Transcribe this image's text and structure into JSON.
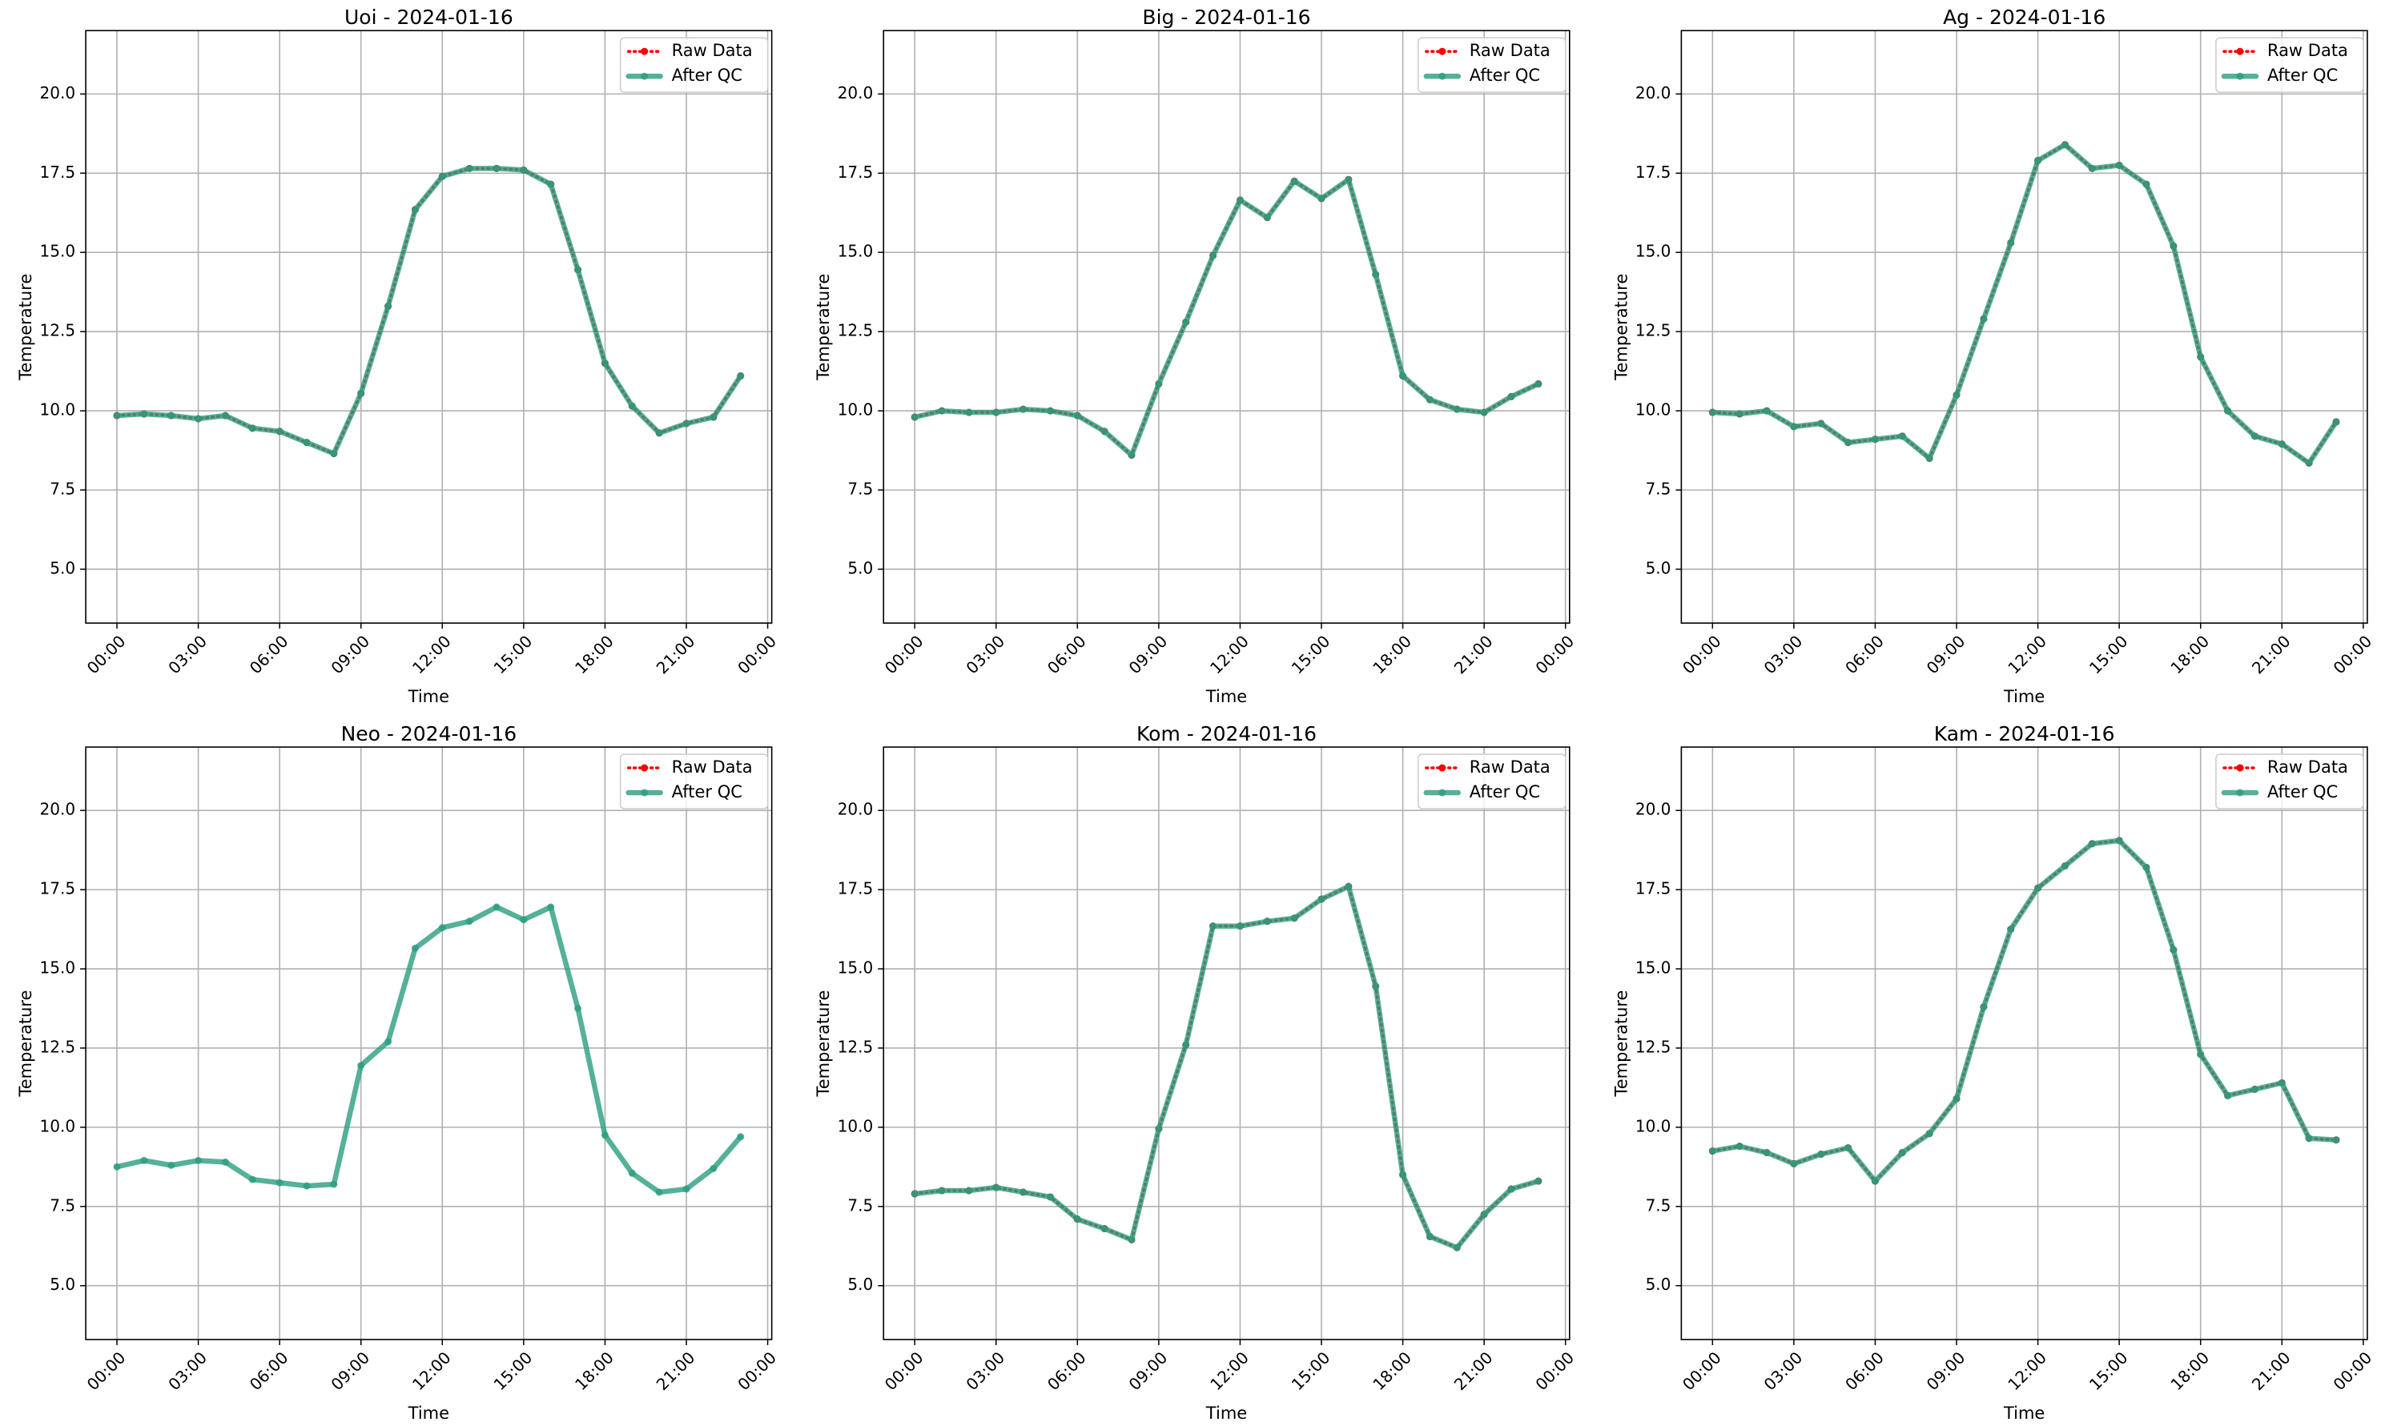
{
  "chart_data": [
    {
      "type": "line",
      "title": "Uoi - 2024-01-16",
      "xlabel": "Time",
      "ylabel": "Temperature",
      "x": [
        0,
        1,
        2,
        3,
        4,
        5,
        6,
        7,
        8,
        9,
        10,
        11,
        12,
        13,
        14,
        15,
        16,
        17,
        18,
        19,
        20,
        21,
        22,
        23
      ],
      "xlim": [
        -1.15,
        24.15
      ],
      "xticks": [
        {
          "value": 0,
          "label": "00:00"
        },
        {
          "value": 3,
          "label": "03:00"
        },
        {
          "value": 6,
          "label": "06:00"
        },
        {
          "value": 9,
          "label": "09:00"
        },
        {
          "value": 12,
          "label": "12:00"
        },
        {
          "value": 15,
          "label": "15:00"
        },
        {
          "value": 18,
          "label": "18:00"
        },
        {
          "value": 21,
          "label": "21:00"
        },
        {
          "value": 24,
          "label": "00:00"
        }
      ],
      "ylim": [
        3.3,
        22.0
      ],
      "yticks": [
        {
          "value": 5,
          "label": "5.0"
        },
        7.5,
        {
          "value": 10,
          "label": "10.0"
        },
        12.5,
        {
          "value": 15,
          "label": "15.0"
        },
        17.5,
        {
          "value": 20,
          "label": "20.0"
        }
      ],
      "grid": true,
      "legend": "upper right",
      "series": [
        {
          "name": "Raw Data",
          "color": "red",
          "values": [
            9.85,
            9.9,
            9.85,
            9.75,
            9.85,
            9.45,
            9.35,
            9.0,
            8.65,
            10.55,
            13.3,
            16.35,
            17.4,
            17.65,
            17.65,
            17.6,
            17.15,
            14.45,
            11.5,
            10.15,
            9.3,
            9.6,
            9.8,
            11.1
          ]
        },
        {
          "name": "After QC",
          "color": "#2a9d7f",
          "values": [
            9.85,
            9.9,
            9.85,
            9.75,
            9.85,
            9.45,
            9.35,
            9.0,
            8.65,
            10.55,
            13.3,
            16.35,
            17.4,
            17.65,
            17.65,
            17.6,
            17.15,
            14.45,
            11.5,
            10.15,
            9.3,
            9.6,
            9.8,
            11.1
          ]
        }
      ]
    },
    {
      "type": "line",
      "title": "Big - 2024-01-16",
      "xlabel": "Time",
      "ylabel": "Temperature",
      "x": [
        0,
        1,
        2,
        3,
        4,
        5,
        6,
        7,
        8,
        9,
        10,
        11,
        12,
        13,
        14,
        15,
        16,
        17,
        18,
        19,
        20,
        21,
        22,
        23
      ],
      "xlim": [
        -1.15,
        24.15
      ],
      "xticks": [
        {
          "value": 0,
          "label": "00:00"
        },
        {
          "value": 3,
          "label": "03:00"
        },
        {
          "value": 6,
          "label": "06:00"
        },
        {
          "value": 9,
          "label": "09:00"
        },
        {
          "value": 12,
          "label": "12:00"
        },
        {
          "value": 15,
          "label": "15:00"
        },
        {
          "value": 18,
          "label": "18:00"
        },
        {
          "value": 21,
          "label": "21:00"
        },
        {
          "value": 24,
          "label": "00:00"
        }
      ],
      "ylim": [
        3.3,
        22.0
      ],
      "yticks": [
        {
          "value": 5,
          "label": "5.0"
        },
        7.5,
        {
          "value": 10,
          "label": "10.0"
        },
        12.5,
        {
          "value": 15,
          "label": "15.0"
        },
        17.5,
        {
          "value": 20,
          "label": "20.0"
        }
      ],
      "grid": true,
      "legend": "upper right",
      "series": [
        {
          "name": "Raw Data",
          "color": "red",
          "values": [
            9.8,
            10.0,
            9.95,
            9.95,
            10.05,
            10.0,
            9.85,
            9.35,
            8.6,
            10.85,
            12.8,
            14.9,
            16.65,
            16.1,
            17.25,
            16.7,
            17.3,
            14.3,
            11.1,
            10.35,
            10.05,
            9.95,
            10.45,
            10.85
          ]
        },
        {
          "name": "After QC",
          "color": "#2a9d7f",
          "values": [
            9.8,
            10.0,
            9.95,
            9.95,
            10.05,
            10.0,
            9.85,
            9.35,
            8.6,
            10.85,
            12.8,
            14.9,
            16.65,
            16.1,
            17.25,
            16.7,
            17.3,
            14.3,
            11.1,
            10.35,
            10.05,
            9.95,
            10.45,
            10.85
          ]
        }
      ]
    },
    {
      "type": "line",
      "title": "Ag - 2024-01-16",
      "xlabel": "Time",
      "ylabel": "Temperature",
      "x": [
        0,
        1,
        2,
        3,
        4,
        5,
        6,
        7,
        8,
        9,
        10,
        11,
        12,
        13,
        14,
        15,
        16,
        17,
        18,
        19,
        20,
        21,
        22,
        23
      ],
      "xlim": [
        -1.15,
        24.15
      ],
      "xticks": [
        {
          "value": 0,
          "label": "00:00"
        },
        {
          "value": 3,
          "label": "03:00"
        },
        {
          "value": 6,
          "label": "06:00"
        },
        {
          "value": 9,
          "label": "09:00"
        },
        {
          "value": 12,
          "label": "12:00"
        },
        {
          "value": 15,
          "label": "15:00"
        },
        {
          "value": 18,
          "label": "18:00"
        },
        {
          "value": 21,
          "label": "21:00"
        },
        {
          "value": 24,
          "label": "00:00"
        }
      ],
      "ylim": [
        3.3,
        22.0
      ],
      "yticks": [
        {
          "value": 5,
          "label": "5.0"
        },
        7.5,
        {
          "value": 10,
          "label": "10.0"
        },
        12.5,
        {
          "value": 15,
          "label": "15.0"
        },
        17.5,
        {
          "value": 20,
          "label": "20.0"
        }
      ],
      "grid": true,
      "legend": "upper right",
      "series": [
        {
          "name": "Raw Data",
          "color": "red",
          "values": [
            9.95,
            9.9,
            10.0,
            9.5,
            9.6,
            9.0,
            9.1,
            9.2,
            8.5,
            10.5,
            12.9,
            15.3,
            17.9,
            18.4,
            17.65,
            17.75,
            17.15,
            15.2,
            11.7,
            10.0,
            9.2,
            8.95,
            8.35,
            9.65
          ]
        },
        {
          "name": "After QC",
          "color": "#2a9d7f",
          "values": [
            9.95,
            9.9,
            10.0,
            9.5,
            9.6,
            9.0,
            9.1,
            9.2,
            8.5,
            10.5,
            12.9,
            15.3,
            17.9,
            18.4,
            17.65,
            17.75,
            17.15,
            15.2,
            11.7,
            10.0,
            9.2,
            8.95,
            8.35,
            9.65
          ]
        }
      ]
    },
    {
      "type": "line",
      "title": "Neo - 2024-01-16",
      "xlabel": "Time",
      "ylabel": "Temperature",
      "x": [
        0,
        1,
        2,
        3,
        4,
        5,
        6,
        7,
        8,
        9,
        10,
        11,
        12,
        13,
        14,
        15,
        16,
        17,
        18,
        19,
        20,
        21,
        22,
        23
      ],
      "xlim": [
        -1.15,
        24.15
      ],
      "xticks": [
        {
          "value": 0,
          "label": "00:00"
        },
        {
          "value": 3,
          "label": "03:00"
        },
        {
          "value": 6,
          "label": "06:00"
        },
        {
          "value": 9,
          "label": "09:00"
        },
        {
          "value": 12,
          "label": "12:00"
        },
        {
          "value": 15,
          "label": "15:00"
        },
        {
          "value": 18,
          "label": "18:00"
        },
        {
          "value": 21,
          "label": "21:00"
        },
        {
          "value": 24,
          "label": "00:00"
        }
      ],
      "ylim": [
        3.3,
        22.0
      ],
      "yticks": [
        {
          "value": 5,
          "label": "5.0"
        },
        7.5,
        {
          "value": 10,
          "label": "10.0"
        },
        12.5,
        {
          "value": 15,
          "label": "15.0"
        },
        17.5,
        {
          "value": 20,
          "label": "20.0"
        }
      ],
      "grid": true,
      "legend": "upper right",
      "series": [
        {
          "name": "Raw Data",
          "color": "red",
          "values": [
            null,
            null,
            null,
            null,
            null,
            null,
            null,
            null,
            null,
            null,
            null,
            null,
            null,
            null,
            null,
            null,
            null,
            null,
            null,
            null,
            null,
            null,
            null,
            null
          ]
        },
        {
          "name": "After QC",
          "color": "#2a9d7f",
          "values": [
            8.75,
            8.95,
            8.8,
            8.95,
            8.9,
            8.35,
            8.25,
            8.15,
            8.2,
            11.95,
            12.7,
            15.65,
            16.3,
            16.5,
            16.95,
            16.55,
            16.95,
            13.75,
            9.75,
            8.55,
            7.95,
            8.05,
            8.7,
            9.7
          ]
        }
      ]
    },
    {
      "type": "line",
      "title": "Kom - 2024-01-16",
      "xlabel": "Time",
      "ylabel": "Temperature",
      "x": [
        0,
        1,
        2,
        3,
        4,
        5,
        6,
        7,
        8,
        9,
        10,
        11,
        12,
        13,
        14,
        15,
        16,
        17,
        18,
        19,
        20,
        21,
        22,
        23
      ],
      "xlim": [
        -1.15,
        24.15
      ],
      "xticks": [
        {
          "value": 0,
          "label": "00:00"
        },
        {
          "value": 3,
          "label": "03:00"
        },
        {
          "value": 6,
          "label": "06:00"
        },
        {
          "value": 9,
          "label": "09:00"
        },
        {
          "value": 12,
          "label": "12:00"
        },
        {
          "value": 15,
          "label": "15:00"
        },
        {
          "value": 18,
          "label": "18:00"
        },
        {
          "value": 21,
          "label": "21:00"
        },
        {
          "value": 24,
          "label": "00:00"
        }
      ],
      "ylim": [
        3.3,
        22.0
      ],
      "yticks": [
        {
          "value": 5,
          "label": "5.0"
        },
        7.5,
        {
          "value": 10,
          "label": "10.0"
        },
        12.5,
        {
          "value": 15,
          "label": "15.0"
        },
        17.5,
        {
          "value": 20,
          "label": "20.0"
        }
      ],
      "grid": true,
      "legend": "upper right",
      "series": [
        {
          "name": "Raw Data",
          "color": "red",
          "values": [
            7.9,
            8.0,
            8.0,
            8.1,
            7.95,
            7.8,
            7.1,
            6.8,
            6.45,
            9.95,
            12.6,
            16.35,
            16.35,
            16.5,
            16.6,
            17.2,
            17.6,
            14.45,
            8.5,
            6.55,
            6.2,
            7.25,
            8.05,
            8.3
          ]
        },
        {
          "name": "After QC",
          "color": "#2a9d7f",
          "values": [
            7.9,
            8.0,
            8.0,
            8.1,
            7.95,
            7.8,
            7.1,
            6.8,
            6.45,
            9.95,
            12.6,
            16.35,
            16.35,
            16.5,
            16.6,
            17.2,
            17.6,
            14.45,
            8.5,
            6.55,
            6.2,
            7.25,
            8.05,
            8.3
          ]
        }
      ]
    },
    {
      "type": "line",
      "title": "Kam - 2024-01-16",
      "xlabel": "Time",
      "ylabel": "Temperature",
      "x": [
        0,
        1,
        2,
        3,
        4,
        5,
        6,
        7,
        8,
        9,
        10,
        11,
        12,
        13,
        14,
        15,
        16,
        17,
        18,
        19,
        20,
        21,
        22,
        23
      ],
      "xlim": [
        -1.15,
        24.15
      ],
      "xticks": [
        {
          "value": 0,
          "label": "00:00"
        },
        {
          "value": 3,
          "label": "03:00"
        },
        {
          "value": 6,
          "label": "06:00"
        },
        {
          "value": 9,
          "label": "09:00"
        },
        {
          "value": 12,
          "label": "12:00"
        },
        {
          "value": 15,
          "label": "15:00"
        },
        {
          "value": 18,
          "label": "18:00"
        },
        {
          "value": 21,
          "label": "21:00"
        },
        {
          "value": 24,
          "label": "00:00"
        }
      ],
      "ylim": [
        3.3,
        22.0
      ],
      "yticks": [
        {
          "value": 5,
          "label": "5.0"
        },
        7.5,
        {
          "value": 10,
          "label": "10.0"
        },
        12.5,
        {
          "value": 15,
          "label": "15.0"
        },
        17.5,
        {
          "value": 20,
          "label": "20.0"
        }
      ],
      "grid": true,
      "legend": "upper right",
      "series": [
        {
          "name": "Raw Data",
          "color": "red",
          "values": [
            9.25,
            9.4,
            9.2,
            8.85,
            9.15,
            9.35,
            8.3,
            9.2,
            9.8,
            10.9,
            13.8,
            16.25,
            17.55,
            18.25,
            18.95,
            19.05,
            18.2,
            15.6,
            12.3,
            11.0,
            11.2,
            11.4,
            9.65,
            9.6
          ]
        },
        {
          "name": "After QC",
          "color": "#2a9d7f",
          "values": [
            9.25,
            9.4,
            9.2,
            8.85,
            9.15,
            9.35,
            8.3,
            9.2,
            9.8,
            10.9,
            13.8,
            16.25,
            17.55,
            18.25,
            18.95,
            19.05,
            18.2,
            15.6,
            12.3,
            11.0,
            11.2,
            11.4,
            9.65,
            9.6
          ]
        }
      ]
    }
  ]
}
